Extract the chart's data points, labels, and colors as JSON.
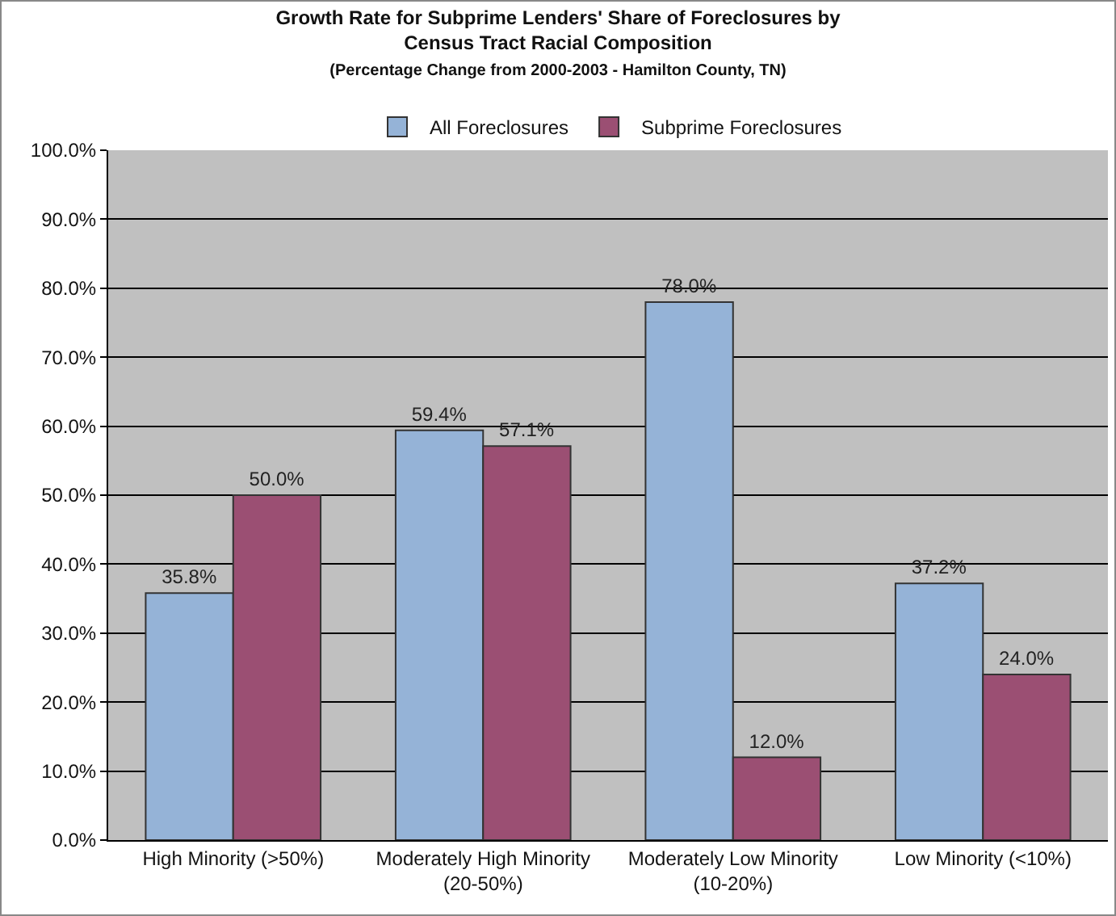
{
  "chart_data": {
    "type": "bar",
    "title": "Growth Rate for Subprime Lenders' Share of Foreclosures by Census Tract Racial Composition",
    "subtitle": "(Percentage Change from 2000-2003 - Hamilton County, TN)",
    "categories": [
      "High Minority (>50%)",
      "Moderately High Minority (20-50%)",
      "Moderately Low Minority (10-20%)",
      "Low Minority (<10%)"
    ],
    "series": [
      {
        "name": "All Foreclosures",
        "color": "#95b3d7",
        "values": [
          35.8,
          59.4,
          78.0,
          37.2
        ],
        "value_labels": [
          "35.8%",
          "59.4%",
          "78.0%",
          "37.2%"
        ]
      },
      {
        "name": "Subprime Foreclosures",
        "color": "#9b4f73",
        "values": [
          50.0,
          57.1,
          12.0,
          24.0
        ],
        "value_labels": [
          "50.0%",
          "57.1%",
          "12.0%",
          "24.0%"
        ]
      }
    ],
    "ylim": [
      0,
      100
    ],
    "yticks": [
      {
        "value": 0,
        "label": "0.0%"
      },
      {
        "value": 10,
        "label": "10.0%"
      },
      {
        "value": 20,
        "label": "20.0%"
      },
      {
        "value": 30,
        "label": "30.0%"
      },
      {
        "value": 40,
        "label": "40.0%"
      },
      {
        "value": 50,
        "label": "50.0%"
      },
      {
        "value": 60,
        "label": "60.0%"
      },
      {
        "value": 70,
        "label": "70.0%"
      },
      {
        "value": 80,
        "label": "80.0%"
      },
      {
        "value": 90,
        "label": "90.0%"
      },
      {
        "value": 100,
        "label": "100.0%"
      }
    ],
    "grid": "y",
    "legend": "top"
  }
}
